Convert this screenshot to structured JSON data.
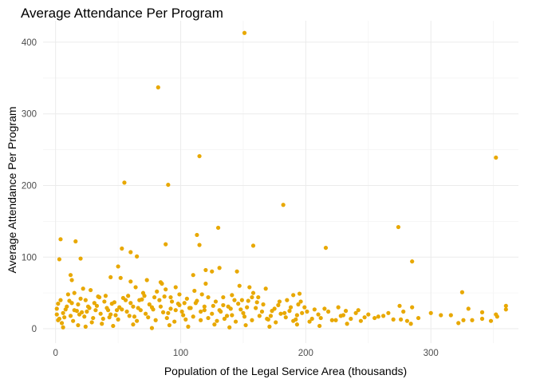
{
  "chart_data": {
    "type": "scatter",
    "title": "Average Attendance Per Program",
    "xlabel": "Population of the Legal Service Area (thousands)",
    "ylabel": "Average Attendance Per Program",
    "xlim": [
      -10,
      370
    ],
    "ylim": [
      -20,
      430
    ],
    "x_ticks": [
      0,
      100,
      200,
      300
    ],
    "x_tick_labels": [
      "0",
      "100",
      "200",
      "300"
    ],
    "y_ticks": [
      0,
      100,
      200,
      300,
      400
    ],
    "y_tick_labels": [
      "0",
      "100",
      "200",
      "300",
      "400"
    ],
    "grid": true,
    "point_color": "#E8A800",
    "points": [
      [
        151,
        413
      ],
      [
        82,
        337
      ],
      [
        115,
        241
      ],
      [
        352,
        239
      ],
      [
        55,
        204
      ],
      [
        90,
        201
      ],
      [
        182,
        173
      ],
      [
        274,
        142
      ],
      [
        130,
        141
      ],
      [
        113,
        131
      ],
      [
        4,
        125
      ],
      [
        16,
        122
      ],
      [
        88,
        118
      ],
      [
        115,
        117
      ],
      [
        158,
        116
      ],
      [
        216,
        113
      ],
      [
        53,
        112
      ],
      [
        60,
        107
      ],
      [
        20,
        98
      ],
      [
        3,
        97
      ],
      [
        285,
        94
      ],
      [
        65,
        101
      ],
      [
        50,
        87
      ],
      [
        120,
        82
      ],
      [
        131,
        85
      ],
      [
        125,
        80
      ],
      [
        145,
        80
      ],
      [
        110,
        75
      ],
      [
        12,
        75
      ],
      [
        52,
        71
      ],
      [
        44,
        72
      ],
      [
        13,
        68
      ],
      [
        73,
        68
      ],
      [
        60,
        66
      ],
      [
        84,
        65
      ],
      [
        85,
        63
      ],
      [
        120,
        63
      ],
      [
        147,
        60
      ],
      [
        155,
        58
      ],
      [
        168,
        56
      ],
      [
        325,
        51
      ],
      [
        195,
        49
      ],
      [
        190,
        47
      ],
      [
        275,
        32
      ],
      [
        285,
        30
      ],
      [
        330,
        28
      ],
      [
        360,
        32
      ],
      [
        308,
        19
      ],
      [
        341,
        23
      ],
      [
        352,
        20
      ],
      [
        353,
        17
      ],
      [
        341,
        14
      ],
      [
        333,
        12
      ],
      [
        348,
        11
      ],
      [
        360,
        27
      ],
      [
        276,
        13
      ],
      [
        281,
        11
      ],
      [
        284,
        7
      ],
      [
        316,
        19
      ],
      [
        326,
        12
      ],
      [
        322,
        8
      ],
      [
        290,
        15
      ],
      [
        300,
        22
      ],
      [
        247,
        16
      ],
      [
        240,
        22
      ],
      [
        232,
        25
      ],
      [
        228,
        18
      ],
      [
        221,
        12
      ],
      [
        210,
        20
      ],
      [
        205,
        14
      ],
      [
        201,
        24
      ],
      [
        199,
        30
      ],
      [
        196,
        38
      ],
      [
        193,
        19
      ],
      [
        190,
        11
      ],
      [
        187,
        25
      ],
      [
        183,
        22
      ],
      [
        178,
        33
      ],
      [
        175,
        28
      ],
      [
        172,
        18
      ],
      [
        170,
        13
      ],
      [
        165,
        24
      ],
      [
        161,
        37
      ],
      [
        157,
        44
      ],
      [
        153,
        30
      ],
      [
        150,
        22
      ],
      [
        146,
        35
      ],
      [
        143,
        40
      ],
      [
        140,
        28
      ],
      [
        137,
        18
      ],
      [
        134,
        33
      ],
      [
        131,
        26
      ],
      [
        128,
        38
      ],
      [
        125,
        21
      ],
      [
        122,
        44
      ],
      [
        119,
        31
      ],
      [
        116,
        24
      ],
      [
        112,
        36
      ],
      [
        108,
        29
      ],
      [
        105,
        42
      ],
      [
        102,
        19
      ],
      [
        99,
        33
      ],
      [
        96,
        26
      ],
      [
        93,
        38
      ],
      [
        90,
        22
      ],
      [
        87,
        45
      ],
      [
        84,
        31
      ],
      [
        81,
        52
      ],
      [
        78,
        27
      ],
      [
        75,
        34
      ],
      [
        72,
        21
      ],
      [
        69,
        41
      ],
      [
        66,
        29
      ],
      [
        63,
        17
      ],
      [
        60,
        36
      ],
      [
        57,
        24
      ],
      [
        54,
        43
      ],
      [
        51,
        30
      ],
      [
        48,
        19
      ],
      [
        45,
        35
      ],
      [
        42,
        26
      ],
      [
        39,
        38
      ],
      [
        36,
        21
      ],
      [
        33,
        32
      ],
      [
        30,
        15
      ],
      [
        27,
        29
      ],
      [
        24,
        40
      ],
      [
        21,
        23
      ],
      [
        18,
        34
      ],
      [
        15,
        26
      ],
      [
        12,
        18
      ],
      [
        9,
        31
      ],
      [
        6,
        22
      ],
      [
        3,
        14
      ],
      [
        2,
        35
      ],
      [
        5,
        8
      ],
      [
        8,
        27
      ],
      [
        11,
        39
      ],
      [
        14,
        11
      ],
      [
        17,
        25
      ],
      [
        20,
        42
      ],
      [
        23,
        17
      ],
      [
        26,
        31
      ],
      [
        29,
        9
      ],
      [
        32,
        26
      ],
      [
        35,
        44
      ],
      [
        38,
        14
      ],
      [
        41,
        29
      ],
      [
        44,
        20
      ],
      [
        47,
        37
      ],
      [
        50,
        13
      ],
      [
        53,
        27
      ],
      [
        56,
        40
      ],
      [
        59,
        18
      ],
      [
        62,
        31
      ],
      [
        65,
        11
      ],
      [
        68,
        26
      ],
      [
        71,
        46
      ],
      [
        74,
        16
      ],
      [
        77,
        30
      ],
      [
        80,
        12
      ],
      [
        83,
        40
      ],
      [
        86,
        23
      ],
      [
        89,
        15
      ],
      [
        92,
        28
      ],
      [
        95,
        10
      ],
      [
        98,
        35
      ],
      [
        101,
        24
      ],
      [
        104,
        13
      ],
      [
        107,
        29
      ],
      [
        110,
        17
      ],
      [
        113,
        39
      ],
      [
        116,
        12
      ],
      [
        119,
        26
      ],
      [
        122,
        15
      ],
      [
        126,
        32
      ],
      [
        129,
        11
      ],
      [
        132,
        24
      ],
      [
        135,
        14
      ],
      [
        138,
        31
      ],
      [
        141,
        19
      ],
      [
        144,
        10
      ],
      [
        148,
        27
      ],
      [
        151,
        17
      ],
      [
        154,
        39
      ],
      [
        157,
        12
      ],
      [
        160,
        29
      ],
      [
        163,
        18
      ],
      [
        166,
        34
      ],
      [
        169,
        14
      ],
      [
        173,
        25
      ],
      [
        176,
        9
      ],
      [
        180,
        21
      ],
      [
        184,
        16
      ],
      [
        188,
        30
      ],
      [
        192,
        13
      ],
      [
        197,
        22
      ],
      [
        203,
        10
      ],
      [
        207,
        27
      ],
      [
        212,
        15
      ],
      [
        218,
        24
      ],
      [
        224,
        12
      ],
      [
        230,
        19
      ],
      [
        236,
        14
      ],
      [
        244,
        11
      ],
      [
        250,
        20
      ],
      [
        255,
        15
      ],
      [
        262,
        18
      ],
      [
        270,
        13
      ],
      [
        278,
        24
      ],
      [
        258,
        17
      ],
      [
        185,
        40
      ],
      [
        158,
        50
      ],
      [
        141,
        47
      ],
      [
        99,
        48
      ],
      [
        70,
        50
      ],
      [
        34,
        45
      ],
      [
        22,
        56
      ],
      [
        96,
        58
      ],
      [
        111,
        53
      ],
      [
        88,
        55
      ],
      [
        64,
        58
      ],
      [
        15,
        50
      ],
      [
        28,
        54
      ],
      [
        6,
        2
      ],
      [
        18,
        5
      ],
      [
        24,
        3
      ],
      [
        37,
        7
      ],
      [
        46,
        4
      ],
      [
        62,
        6
      ],
      [
        77,
        1
      ],
      [
        91,
        5
      ],
      [
        106,
        3
      ],
      [
        127,
        6
      ],
      [
        139,
        2
      ],
      [
        152,
        5
      ],
      [
        171,
        3
      ],
      [
        193,
        6
      ],
      [
        211,
        4
      ],
      [
        233,
        7
      ],
      [
        1,
        20
      ],
      [
        1,
        28
      ],
      [
        2,
        12
      ],
      [
        4,
        40
      ],
      [
        7,
        16
      ],
      [
        10,
        48
      ],
      [
        13,
        36
      ],
      [
        19,
        20
      ],
      [
        25,
        24
      ],
      [
        31,
        36
      ],
      [
        40,
        46
      ],
      [
        43,
        16
      ],
      [
        49,
        26
      ],
      [
        58,
        46
      ],
      [
        67,
        40
      ],
      [
        79,
        44
      ],
      [
        92,
        44
      ],
      [
        103,
        36
      ],
      [
        117,
        48
      ],
      [
        134,
        44
      ],
      [
        149,
        40
      ],
      [
        162,
        44
      ],
      [
        179,
        38
      ],
      [
        194,
        34
      ],
      [
        215,
        28
      ],
      [
        226,
        30
      ],
      [
        242,
        26
      ],
      [
        266,
        22
      ]
    ]
  }
}
